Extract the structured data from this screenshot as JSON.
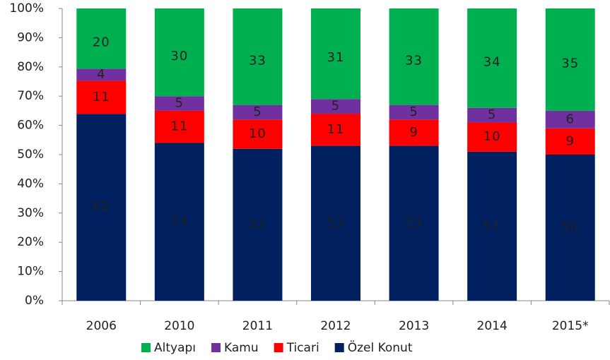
{
  "chart_data": {
    "type": "bar",
    "stacking": "percent",
    "categories": [
      "2006",
      "2010",
      "2011",
      "2012",
      "2013",
      "2014",
      "2015*"
    ],
    "series": [
      {
        "name": "Altyapı",
        "color": "#00b050",
        "values": [
          20,
          30,
          33,
          31,
          33,
          34,
          35
        ]
      },
      {
        "name": "Kamu",
        "color": "#7030a0",
        "values": [
          4,
          5,
          5,
          5,
          5,
          5,
          6
        ]
      },
      {
        "name": "Ticari",
        "color": "#ff0000",
        "values": [
          11,
          11,
          10,
          11,
          9,
          10,
          9
        ]
      },
      {
        "name": "Özel Konut",
        "color": "#002060",
        "values": [
          62,
          54,
          52,
          53,
          53,
          51,
          50
        ]
      }
    ],
    "ylim": [
      0,
      100
    ],
    "yticks": [
      {
        "value": 0,
        "label": "0%"
      },
      {
        "value": 10,
        "label": "10%"
      },
      {
        "value": 20,
        "label": "20%"
      },
      {
        "value": 30,
        "label": "30%"
      },
      {
        "value": 40,
        "label": "40%"
      },
      {
        "value": 50,
        "label": "50%"
      },
      {
        "value": 60,
        "label": "60%"
      },
      {
        "value": 70,
        "label": "70%"
      },
      {
        "value": 80,
        "label": "80%"
      },
      {
        "value": 90,
        "label": "90%"
      },
      {
        "value": 100,
        "label": "100%"
      }
    ],
    "legend": "bottom"
  }
}
